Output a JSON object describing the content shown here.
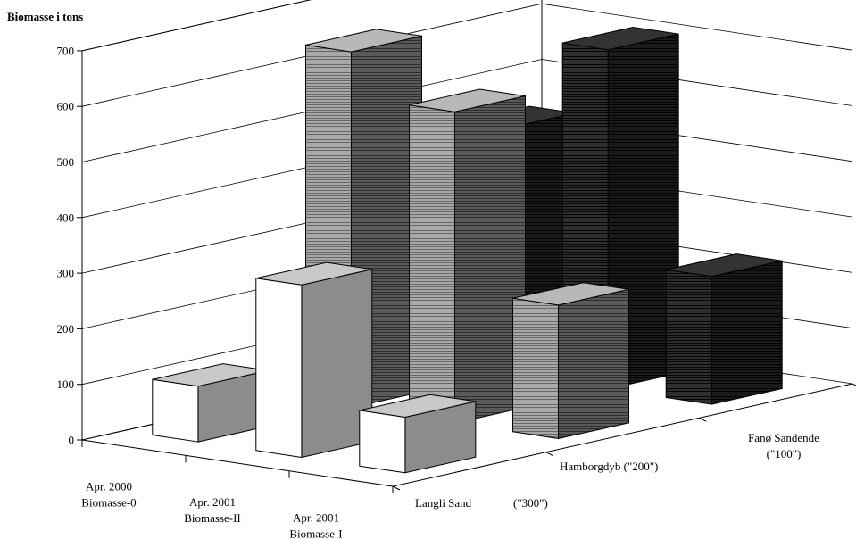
{
  "chart_data": {
    "type": "bar",
    "subtype": "3d-column",
    "title": "Biomasse i tons",
    "ylim": [
      0,
      700
    ],
    "yticks": [
      "0",
      "100",
      "200",
      "300",
      "400",
      "500",
      "600",
      "700"
    ],
    "grid": true,
    "categories": [
      {
        "line1": "Apr. 2000",
        "line2": "Biomasse-0"
      },
      {
        "line1": "Apr. 2001",
        "line2": "Biomasse-II"
      },
      {
        "line1": "Apr. 2001",
        "line2": "Biomasse-I"
      }
    ],
    "series": [
      {
        "line1": "Langli Sand",
        "line2": "(\"300\")",
        "values": [
          100,
          310,
          100
        ]
      },
      {
        "line1": "Hamborgdyb (\"200\")",
        "line2": "",
        "values": [
          640,
          560,
          240
        ]
      },
      {
        "line1": "Fanø Sandende",
        "line2": "(\"100\")",
        "values": [
          440,
          610,
          230
        ]
      }
    ]
  },
  "colors": {
    "row_front": {
      "front": "#ffffff",
      "side": "#8c8c8c",
      "top": "#c8c8c8"
    },
    "row_mid": {
      "front": "#9a9a9a",
      "side": "#4a4a4a",
      "top": "#b8b8b8",
      "hatch": true
    },
    "row_back": {
      "front": "#2a2a2a",
      "side": "#151515",
      "top": "#333333",
      "hatch": true
    }
  }
}
